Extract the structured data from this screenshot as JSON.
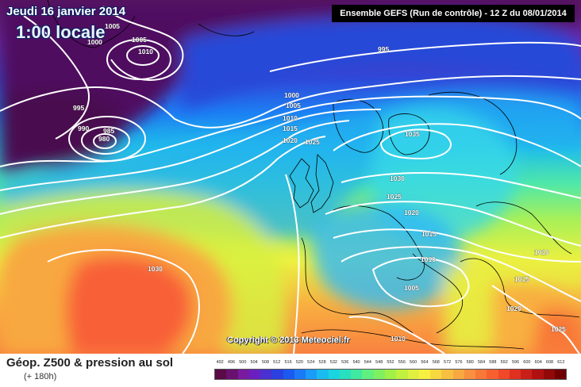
{
  "header": {
    "date": "Jeudi 16 janvier 2014",
    "local_time": "1:00 locale",
    "run_info": "Ensemble GEFS (Run de contrôle)  -  12 Z du 08/01/2014"
  },
  "copyright": "Copyright © 2013 Meteociel.fr",
  "isobars": [
    {
      "id": "1005-a",
      "text": "1005"
    },
    {
      "id": "1005-b",
      "text": "1005"
    },
    {
      "id": "1000-a",
      "text": "1000"
    },
    {
      "id": "1010-a",
      "text": "1010"
    },
    {
      "id": "995-a",
      "text": "995"
    },
    {
      "id": "995-b",
      "text": "995"
    },
    {
      "id": "990-a",
      "text": "990"
    },
    {
      "id": "985-a",
      "text": "985"
    },
    {
      "id": "980-a",
      "text": "980"
    },
    {
      "id": "1000-b",
      "text": "1000"
    },
    {
      "id": "1005-c",
      "text": "1005"
    },
    {
      "id": "1010-b",
      "text": "1010"
    },
    {
      "id": "1015-a",
      "text": "1015"
    },
    {
      "id": "1020-a",
      "text": "1020"
    },
    {
      "id": "1025-a",
      "text": "1025"
    },
    {
      "id": "1035-a",
      "text": "1035"
    },
    {
      "id": "1030-a",
      "text": "1030"
    },
    {
      "id": "1025-b",
      "text": "1025"
    },
    {
      "id": "1020-b",
      "text": "1020"
    },
    {
      "id": "1015-b",
      "text": "1015"
    },
    {
      "id": "1010-c",
      "text": "1010"
    },
    {
      "id": "1010-d",
      "text": "1010"
    },
    {
      "id": "1005-d",
      "text": "1005"
    },
    {
      "id": "1015-c",
      "text": "1015"
    },
    {
      "id": "1020-c",
      "text": "1020"
    },
    {
      "id": "1025-c",
      "text": "1025"
    },
    {
      "id": "1030-b",
      "text": "1030"
    },
    {
      "id": "1010-e",
      "text": "1010"
    }
  ],
  "legend": {
    "field_title": "Géop. Z500 & pression au sol",
    "lead_time": "(+ 180h)",
    "scale_values": [
      "492",
      "496",
      "500",
      "504",
      "508",
      "512",
      "516",
      "520",
      "524",
      "528",
      "532",
      "536",
      "540",
      "544",
      "548",
      "552",
      "556",
      "560",
      "564",
      "568",
      "572",
      "576",
      "580",
      "584",
      "588",
      "592",
      "596",
      "600",
      "604",
      "608",
      "612"
    ],
    "scale_colors": [
      "#5a0a46",
      "#6a1070",
      "#7a1aa0",
      "#6a20c0",
      "#4a30d0",
      "#2a40e0",
      "#1a5af0",
      "#1a7af8",
      "#1a9cf8",
      "#1abcf0",
      "#1ad4e0",
      "#28e0c0",
      "#40e8a0",
      "#60f080",
      "#80f060",
      "#a0f048",
      "#c0f040",
      "#e0f040",
      "#f8f040",
      "#f8d840",
      "#f8c040",
      "#f8a840",
      "#f89040",
      "#f87838",
      "#f86030",
      "#f04828",
      "#e03020",
      "#c82018",
      "#b01010",
      "#900808",
      "#700000"
    ]
  }
}
